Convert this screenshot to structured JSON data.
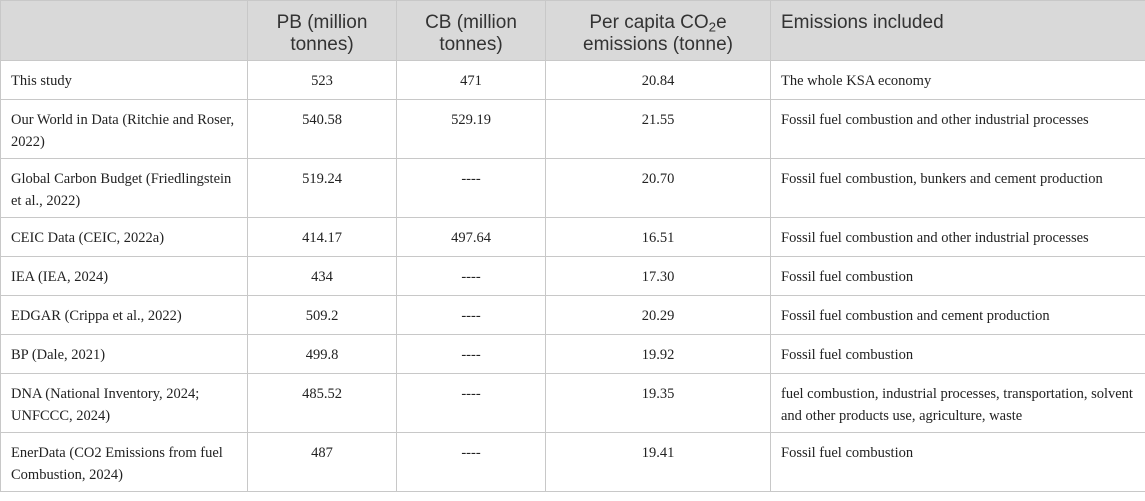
{
  "table": {
    "headers": {
      "source": "",
      "pb": "PB (million tonnes)",
      "cb": "CB (million tonnes)",
      "per_capita_prefix": "Per capita CO",
      "per_capita_sub": "2",
      "per_capita_suffix": "e emissions (tonne)",
      "emissions": "Emissions included"
    },
    "rows": [
      {
        "source": "This study",
        "pb": "523",
        "cb": "471",
        "per_capita": "20.84",
        "emissions": "The whole KSA economy"
      },
      {
        "source": "Our World in Data (Ritchie and Roser, 2022)",
        "pb": "540.58",
        "cb": "529.19",
        "per_capita": "21.55",
        "emissions": "Fossil fuel combustion and other industrial processes"
      },
      {
        "source": "Global Carbon Budget (Friedlingstein et al., 2022)",
        "pb": "519.24",
        "cb": "----",
        "per_capita": "20.70",
        "emissions": "Fossil fuel combustion, bunkers and cement production"
      },
      {
        "source": "CEIC Data (CEIC, 2022a)",
        "pb": "414.17",
        "cb": "497.64",
        "per_capita": "16.51",
        "emissions": "Fossil fuel combustion and other industrial processes"
      },
      {
        "source": "IEA (IEA, 2024)",
        "pb": "434",
        "cb": "----",
        "per_capita": "17.30",
        "emissions": "Fossil fuel combustion"
      },
      {
        "source": "EDGAR (Crippa et al., 2022)",
        "pb": "509.2",
        "cb": "----",
        "per_capita": "20.29",
        "emissions": "Fossil fuel combustion and cement production"
      },
      {
        "source": "BP (Dale, 2021)",
        "pb": "499.8",
        "cb": "----",
        "per_capita": "19.92",
        "emissions": "Fossil fuel combustion"
      },
      {
        "source": "DNA (National Inventory, 2024; UNFCCC, 2024)",
        "pb": "485.52",
        "cb": "----",
        "per_capita": "19.35",
        "emissions": "fuel combustion, industrial processes, transportation, solvent and other products use, agriculture, waste"
      },
      {
        "source": "EnerData (CO2 Emissions from fuel Combustion, 2024)",
        "pb": "487",
        "cb": "----",
        "per_capita": "19.41",
        "emissions": "Fossil fuel combustion"
      }
    ]
  }
}
